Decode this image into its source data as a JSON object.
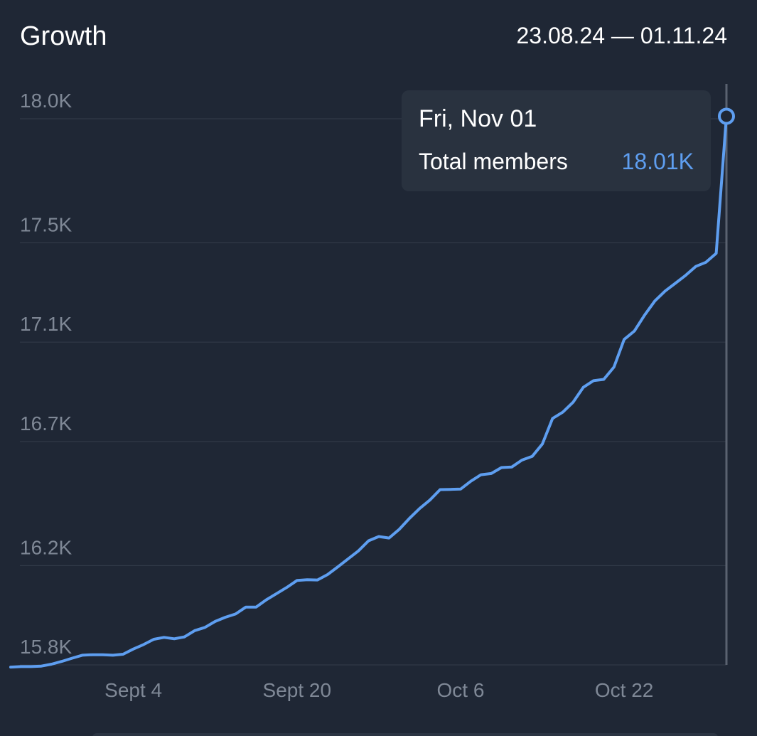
{
  "header": {
    "title": "Growth",
    "date_range": "23.08.24 — 01.11.24"
  },
  "tooltip": {
    "date": "Fri, Nov 01",
    "label": "Total members",
    "value": "18.01K"
  },
  "colors": {
    "background": "#1f2735",
    "line": "#5e9ef0",
    "grid": "#343d4b",
    "axis_text": "#7f8896",
    "tooltip_bg": "#29323f"
  },
  "chart_data": {
    "type": "line",
    "title": "Growth",
    "xlabel": "",
    "ylabel": "",
    "ylim": [
      15750,
      18150
    ],
    "grid": true,
    "legend": "none",
    "y_ticks": [
      {
        "value": 15800,
        "label": "15.8K"
      },
      {
        "value": 16200,
        "label": "16.2K"
      },
      {
        "value": 16700,
        "label": "16.7K"
      },
      {
        "value": 17100,
        "label": "17.1K"
      },
      {
        "value": 17500,
        "label": "17.5K"
      },
      {
        "value": 18000,
        "label": "18.0K"
      }
    ],
    "x_ticks": [
      {
        "date": "2024-09-04",
        "label": "Sept 4"
      },
      {
        "date": "2024-09-20",
        "label": "Sept 20"
      },
      {
        "date": "2024-10-06",
        "label": "Oct 6"
      },
      {
        "date": "2024-10-22",
        "label": "Oct 22"
      }
    ],
    "series": [
      {
        "name": "Total members",
        "color": "#5e9ef0",
        "x": [
          "2024-08-23",
          "2024-08-24",
          "2024-08-25",
          "2024-08-26",
          "2024-08-27",
          "2024-08-28",
          "2024-08-29",
          "2024-08-30",
          "2024-08-31",
          "2024-09-01",
          "2024-09-02",
          "2024-09-03",
          "2024-09-04",
          "2024-09-05",
          "2024-09-06",
          "2024-09-07",
          "2024-09-08",
          "2024-09-09",
          "2024-09-10",
          "2024-09-11",
          "2024-09-12",
          "2024-09-13",
          "2024-09-14",
          "2024-09-15",
          "2024-09-16",
          "2024-09-17",
          "2024-09-18",
          "2024-09-19",
          "2024-09-20",
          "2024-09-21",
          "2024-09-22",
          "2024-09-23",
          "2024-09-24",
          "2024-09-25",
          "2024-09-26",
          "2024-09-27",
          "2024-09-28",
          "2024-09-29",
          "2024-09-30",
          "2024-10-01",
          "2024-10-02",
          "2024-10-03",
          "2024-10-04",
          "2024-10-05",
          "2024-10-06",
          "2024-10-07",
          "2024-10-08",
          "2024-10-09",
          "2024-10-10",
          "2024-10-11",
          "2024-10-12",
          "2024-10-13",
          "2024-10-14",
          "2024-10-15",
          "2024-10-16",
          "2024-10-17",
          "2024-10-18",
          "2024-10-19",
          "2024-10-20",
          "2024-10-21",
          "2024-10-22",
          "2024-10-23",
          "2024-10-24",
          "2024-10-25",
          "2024-10-26",
          "2024-10-27",
          "2024-10-28",
          "2024-10-29",
          "2024-10-30",
          "2024-10-31",
          "2024-11-01"
        ],
        "y": [
          15791,
          15793,
          15793,
          15795,
          15803,
          15814,
          15827,
          15839,
          15841,
          15841,
          15839,
          15843,
          15864,
          15882,
          15903,
          15911,
          15905,
          15913,
          15938,
          15951,
          15975,
          15992,
          16005,
          16033,
          16033,
          16062,
          16087,
          16112,
          16140,
          16143,
          16142,
          16164,
          16195,
          16227,
          16259,
          16300,
          16317,
          16311,
          16346,
          16390,
          16430,
          16464,
          16506,
          16507,
          16508,
          16540,
          16566,
          16571,
          16595,
          16597,
          16625,
          16640,
          16690,
          16793,
          16818,
          16858,
          16918,
          16945,
          16950,
          17000,
          17111,
          17145,
          17209,
          17266,
          17306,
          17337,
          17369,
          17405,
          17422,
          17458,
          18010
        ]
      }
    ]
  }
}
